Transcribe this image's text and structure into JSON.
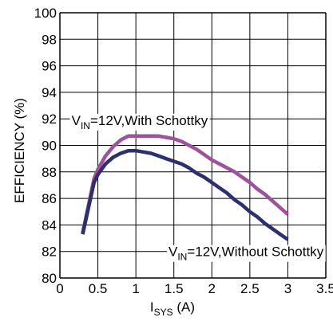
{
  "chart_data": {
    "type": "line",
    "title": "",
    "xlabel": {
      "main": "I",
      "sub": "SYS",
      "unit": " (A)"
    },
    "ylabel": "EFFICIENCY (%)",
    "xlim": [
      0,
      3.5
    ],
    "ylim": [
      80,
      100
    ],
    "x_ticks": [
      "0",
      "0.5",
      "1",
      "1.5",
      "2",
      "2.5",
      "3",
      "3.5"
    ],
    "y_ticks": [
      "80",
      "82",
      "84",
      "86",
      "88",
      "90",
      "92",
      "94",
      "96",
      "98",
      "100"
    ],
    "grid": true,
    "series": [
      {
        "label_parts": {
          "pre": "V",
          "sub": "IN",
          "post": "=12V,With Schottky"
        },
        "color": "#a0509d",
        "x": [
          0.3,
          0.45,
          0.5,
          0.6,
          0.7,
          0.8,
          0.9,
          1.0,
          1.1,
          1.2,
          1.3,
          1.4,
          1.5,
          1.6,
          1.7,
          1.8,
          1.9,
          2.0,
          2.1,
          2.2,
          2.3,
          2.4,
          2.5,
          2.6,
          2.7,
          2.8,
          2.9,
          3.0
        ],
        "values": [
          83.4,
          87.5,
          88.2,
          89.2,
          89.9,
          90.4,
          90.7,
          90.7,
          90.7,
          90.7,
          90.7,
          90.6,
          90.5,
          90.3,
          90.0,
          89.7,
          89.3,
          88.9,
          88.6,
          88.3,
          88.0,
          87.6,
          87.2,
          86.7,
          86.3,
          85.8,
          85.3,
          84.8
        ]
      },
      {
        "label_parts": {
          "pre": "V",
          "sub": "IN",
          "post": "=12V,Without  Schottky"
        },
        "color": "#2b3170",
        "x": [
          0.3,
          0.45,
          0.5,
          0.6,
          0.7,
          0.8,
          0.9,
          1.0,
          1.1,
          1.2,
          1.3,
          1.4,
          1.5,
          1.6,
          1.7,
          1.8,
          1.9,
          2.0,
          2.1,
          2.2,
          2.3,
          2.4,
          2.5,
          2.6,
          2.7,
          2.8,
          2.9,
          3.0
        ],
        "values": [
          83.3,
          87.2,
          87.8,
          88.6,
          89.1,
          89.4,
          89.6,
          89.6,
          89.5,
          89.4,
          89.2,
          89.0,
          88.8,
          88.6,
          88.3,
          87.9,
          87.6,
          87.2,
          86.8,
          86.4,
          85.9,
          85.5,
          85.0,
          84.6,
          84.1,
          83.7,
          83.3,
          82.9
        ]
      }
    ],
    "annotations": [
      {
        "series": 0,
        "x": 1.05,
        "y": 91.9
      },
      {
        "series": 1,
        "x": 2.45,
        "y": 82.0
      }
    ]
  }
}
